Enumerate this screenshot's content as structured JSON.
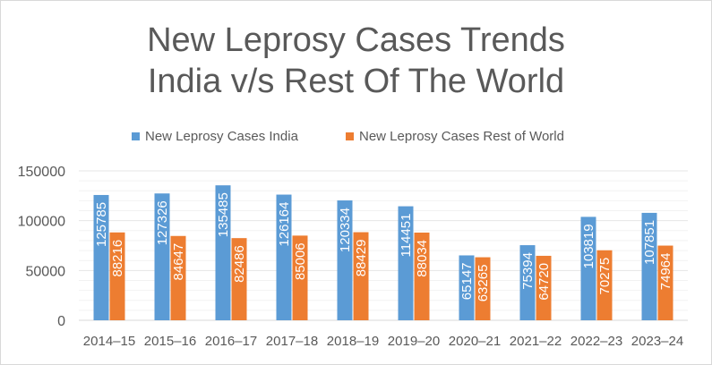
{
  "chart_data": {
    "type": "bar",
    "title": "New Leprosy Cases Trends India v/s Rest Of The World",
    "title_lines": [
      "New Leprosy Cases Trends",
      "India v/s Rest Of The World"
    ],
    "categories": [
      "2014–15",
      "2015–16",
      "2016–17",
      "2017–18",
      "2018–19",
      "2019–20",
      "2020–21",
      "2021–22",
      "2022–23",
      "2023–24"
    ],
    "series": [
      {
        "name": "New Leprosy Cases India",
        "color": "#5b9bd5",
        "values": [
          125785,
          127326,
          135485,
          126164,
          120334,
          114451,
          65147,
          75394,
          103819,
          107851
        ]
      },
      {
        "name": "New Leprosy Cases Rest of World",
        "color": "#ed7d31",
        "values": [
          88216,
          84647,
          82486,
          85006,
          88429,
          88034,
          63265,
          64720,
          70275,
          74964
        ]
      }
    ],
    "ylim": [
      0,
      150000
    ],
    "yticks": [
      0,
      50000,
      100000,
      150000
    ],
    "ytick_labels": [
      "0",
      "50000",
      "100000",
      "150000"
    ],
    "grid": true,
    "legend_position": "top",
    "xlabel": "",
    "ylabel": ""
  }
}
